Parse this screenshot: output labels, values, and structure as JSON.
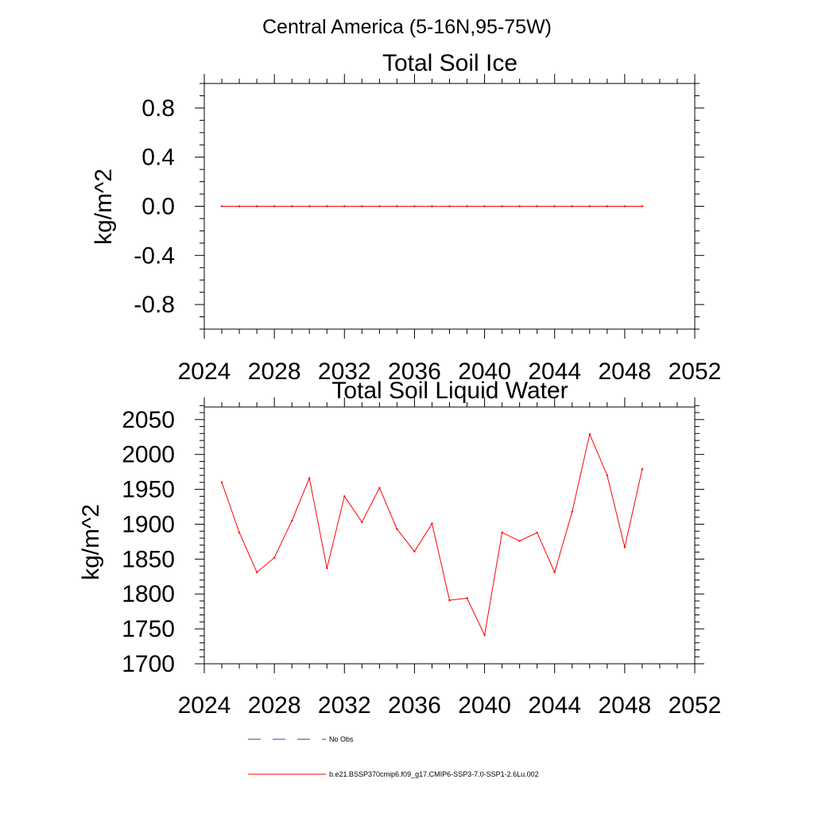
{
  "figure": {
    "title": "Central America (5-16N,95-75W)"
  },
  "legend": {
    "items": [
      {
        "label": "No Obs",
        "color": "#3b3f8a",
        "style": "dashed"
      },
      {
        "label": "b.e21.BSSP370cmip6.f09_g17.CMIP6-SSP3-7.0-SSP1-2.6Lu.002",
        "color": "#ff0000",
        "style": "solid"
      }
    ]
  },
  "chart_data": [
    {
      "type": "line",
      "title": "Total Soil Ice",
      "ylabel": "kg/m^2",
      "xlabel": "",
      "xlim": [
        2024,
        2052
      ],
      "ylim": [
        -1.0,
        1.0
      ],
      "xticks": [
        2024,
        2028,
        2032,
        2036,
        2040,
        2044,
        2048,
        2052
      ],
      "xtick_labels": [
        "2024",
        "2028",
        "2032",
        "2036",
        "2040",
        "2044",
        "2048",
        "2052"
      ],
      "yticks": [
        -0.8,
        -0.4,
        0.0,
        0.4,
        0.8
      ],
      "ytick_labels": [
        "-0.8",
        "-0.4",
        "0.0",
        "0.4",
        "0.8"
      ],
      "y_minor_step": 0.1,
      "x_minor_step": 1,
      "series": [
        {
          "color": "#ff0000",
          "x": [
            2025,
            2026,
            2027,
            2028,
            2029,
            2030,
            2031,
            2032,
            2033,
            2034,
            2035,
            2036,
            2037,
            2038,
            2039,
            2040,
            2041,
            2042,
            2043,
            2044,
            2045,
            2046,
            2047,
            2048,
            2049
          ],
          "values": [
            0,
            0,
            0,
            0,
            0,
            0,
            0,
            0,
            0,
            0,
            0,
            0,
            0,
            0,
            0,
            0,
            0,
            0,
            0,
            0,
            0,
            0,
            0,
            0,
            0
          ]
        }
      ]
    },
    {
      "type": "line",
      "title": "Total Soil Liquid Water",
      "ylabel": "kg/m^2",
      "xlabel": "",
      "xlim": [
        2024,
        2052
      ],
      "ylim": [
        1700,
        2068
      ],
      "xticks": [
        2024,
        2028,
        2032,
        2036,
        2040,
        2044,
        2048,
        2052
      ],
      "xtick_labels": [
        "2024",
        "2028",
        "2032",
        "2036",
        "2040",
        "2044",
        "2048",
        "2052"
      ],
      "yticks": [
        1700,
        1750,
        1800,
        1850,
        1900,
        1950,
        2000,
        2050
      ],
      "ytick_labels": [
        "1700",
        "1750",
        "1800",
        "1850",
        "1900",
        "1950",
        "2000",
        "2050"
      ],
      "y_minor_step": 10,
      "x_minor_step": 1,
      "series": [
        {
          "color": "#ff0000",
          "x": [
            2025,
            2026,
            2027,
            2028,
            2029,
            2030,
            2031,
            2032,
            2033,
            2034,
            2035,
            2036,
            2037,
            2038,
            2039,
            2040,
            2041,
            2042,
            2043,
            2044,
            2045,
            2046,
            2047,
            2048,
            2049
          ],
          "values": [
            1960,
            1888,
            1831,
            1852,
            1905,
            1966,
            1837,
            1940,
            1903,
            1952,
            1893,
            1861,
            1901,
            1791,
            1794,
            1741,
            1888,
            1876,
            1888,
            1831,
            1918,
            2029,
            1970,
            1867,
            1979
          ]
        }
      ]
    }
  ]
}
